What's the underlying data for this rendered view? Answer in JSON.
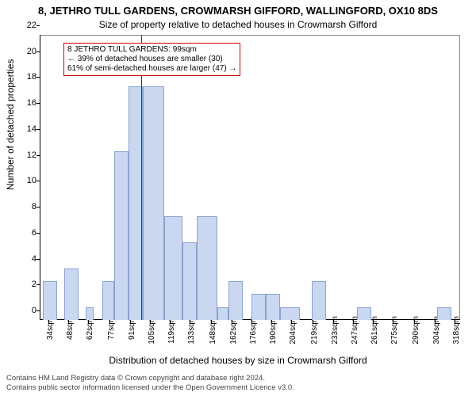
{
  "chart": {
    "type": "histogram",
    "title_main": "8, JETHRO TULL GARDENS, CROWMARSH GIFFORD, WALLINGFORD, OX10 8DS",
    "title_sub": "Size of property relative to detached houses in Crowmarsh Gifford",
    "x_label": "Distribution of detached houses by size in Crowmarsh Gifford",
    "y_label": "Number of detached properties",
    "background_color": "#ffffff",
    "bar_fill": "#c9d7f0",
    "bar_stroke": "#8aa3d0",
    "axis_color": "#000000",
    "ref_line_color": "#cc0000",
    "y": {
      "min": 0,
      "max": 22,
      "step": 2
    },
    "x_tick_labels": [
      "34sqm",
      "48sqm",
      "62sqm",
      "77sqm",
      "91sqm",
      "105sqm",
      "119sqm",
      "133sqm",
      "148sqm",
      "162sqm",
      "176sqm",
      "190sqm",
      "204sqm",
      "219sqm",
      "233sqm",
      "247sqm",
      "261sqm",
      "275sqm",
      "290sqm",
      "304sqm",
      "318sqm"
    ],
    "x_tick_sqm": [
      34,
      48,
      62,
      77,
      91,
      105,
      119,
      133,
      148,
      162,
      176,
      190,
      204,
      219,
      233,
      247,
      261,
      275,
      290,
      304,
      318
    ],
    "bars": [
      {
        "start": 30,
        "end": 40,
        "count": 3
      },
      {
        "start": 45,
        "end": 55,
        "count": 4
      },
      {
        "start": 60,
        "end": 66,
        "count": 1
      },
      {
        "start": 72,
        "end": 80,
        "count": 3
      },
      {
        "start": 80,
        "end": 90,
        "count": 13
      },
      {
        "start": 90,
        "end": 100,
        "count": 18
      },
      {
        "start": 100,
        "end": 115,
        "count": 18
      },
      {
        "start": 115,
        "end": 128,
        "count": 8
      },
      {
        "start": 128,
        "end": 138,
        "count": 6
      },
      {
        "start": 138,
        "end": 152,
        "count": 8
      },
      {
        "start": 152,
        "end": 160,
        "count": 1
      },
      {
        "start": 160,
        "end": 170,
        "count": 3
      },
      {
        "start": 176,
        "end": 186,
        "count": 2
      },
      {
        "start": 186,
        "end": 196,
        "count": 2
      },
      {
        "start": 196,
        "end": 210,
        "count": 1
      },
      {
        "start": 218,
        "end": 228,
        "count": 3
      },
      {
        "start": 250,
        "end": 260,
        "count": 1
      },
      {
        "start": 306,
        "end": 316,
        "count": 1
      }
    ],
    "x_domain": {
      "min": 28,
      "max": 322
    },
    "reference_line_sqm": 99,
    "annotation": {
      "line1": "8 JETHRO TULL GARDENS: 99sqm",
      "line2": "← 39% of detached houses are smaller (30)",
      "line3": "61% of semi-detached houses are larger (47) →",
      "border_color": "#cc0000"
    }
  },
  "footer": {
    "line1": "Contains HM Land Registry data © Crown copyright and database right 2024.",
    "line2": "Contains public sector information licensed under the Open Government Licence v3.0."
  }
}
